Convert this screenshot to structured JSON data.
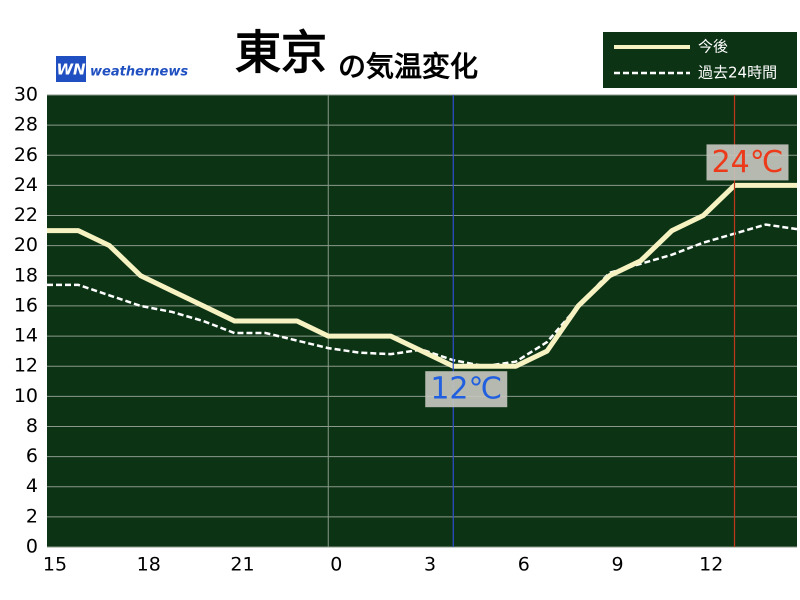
{
  "chart_data": {
    "type": "line",
    "title": "東京",
    "subtitle": "の気温変化",
    "logo_mark": "WN",
    "logo_text": "weathernews",
    "categories": [
      "15",
      null,
      null,
      "18",
      null,
      null,
      "21",
      null,
      null,
      "0",
      null,
      null,
      "3",
      null,
      null,
      "6",
      null,
      null,
      "9",
      null,
      null,
      "12",
      null,
      null,
      null
    ],
    "series": [
      {
        "name": "今後",
        "color": "#f6f2c2",
        "style": "solid",
        "values": [
          21,
          21,
          20,
          18,
          17,
          16,
          15,
          15,
          15,
          14,
          14,
          14,
          13,
          12,
          12,
          12,
          13,
          16,
          18,
          19,
          21,
          22,
          24,
          24,
          24
        ]
      },
      {
        "name": "過去24時間",
        "color": "#ffffff",
        "style": "dashed",
        "values": [
          17.4,
          17.4,
          16.7,
          16,
          15.6,
          15,
          14.2,
          14.2,
          13.7,
          13.2,
          12.9,
          12.8,
          13.1,
          12.4,
          12,
          12.3,
          13.6,
          16,
          18.2,
          18.8,
          19.4,
          20.2,
          20.8,
          21.4,
          21.1
        ]
      }
    ],
    "annotations": [
      {
        "label": "12℃",
        "value": 12,
        "color": "#1f5fe0",
        "line_color": "#2f4fd0"
      },
      {
        "label": "24℃",
        "value": 24,
        "color": "#ec3a1a",
        "line_color": "#c0381c"
      }
    ],
    "ylim": [
      0,
      30
    ],
    "yticks": [
      0,
      2,
      4,
      6,
      8,
      10,
      12,
      14,
      16,
      18,
      20,
      22,
      24,
      26,
      28,
      30
    ],
    "grid": true,
    "plot_color": "#0d3315",
    "legend": "top-right"
  }
}
